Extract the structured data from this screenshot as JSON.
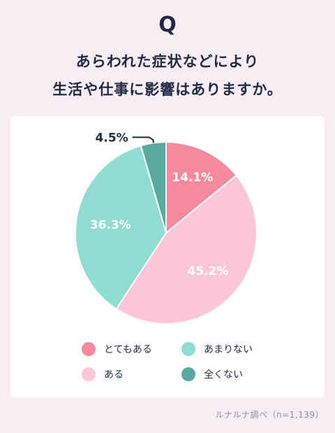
{
  "header": {
    "q_mark": "Q",
    "title_line1": "あらわれた症状などにより",
    "title_line2": "生活や仕事に影響はありますか。"
  },
  "chart_data": {
    "type": "pie",
    "slices": [
      {
        "label": "とてもある",
        "value": 14.1,
        "display": "14.1%",
        "color": "#f48a9c"
      },
      {
        "label": "ある",
        "value": 45.2,
        "display": "45.2%",
        "color": "#fbc6d8"
      },
      {
        "label": "あまりない",
        "value": 36.3,
        "display": "36.3%",
        "color": "#8fdcd0"
      },
      {
        "label": "全くない",
        "value": 4.5,
        "display": "4.5%",
        "color": "#5aa9a0"
      }
    ],
    "start": "12 o'clock",
    "direction": "clockwise",
    "legend_position": "bottom"
  },
  "legend": {
    "items": [
      {
        "label": "とてもある",
        "color": "#f48a9c"
      },
      {
        "label": "あまりない",
        "color": "#8fdcd0"
      },
      {
        "label": "ある",
        "color": "#fbc6d8"
      },
      {
        "label": "全くない",
        "color": "#5aa9a0"
      }
    ]
  },
  "footer": {
    "source": "ルナルナ調べ（n=1,139）"
  }
}
